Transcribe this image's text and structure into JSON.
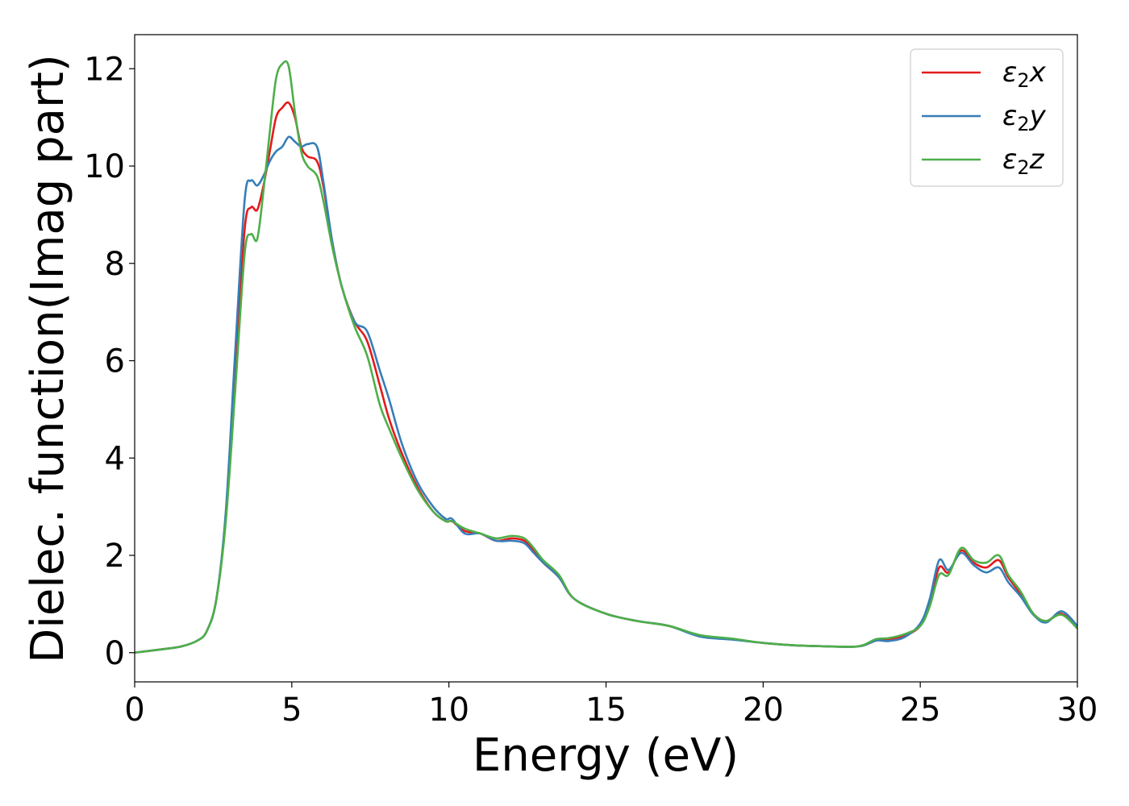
{
  "chart_data": {
    "type": "line",
    "xlabel": "Energy (eV)",
    "ylabel": "Dielec. function(Imag part)",
    "xlim": [
      0,
      30
    ],
    "ylim": [
      -0.6,
      12.7
    ],
    "xticks": [
      0,
      5,
      10,
      15,
      20,
      25,
      30
    ],
    "yticks": [
      0,
      2,
      4,
      6,
      8,
      10,
      12
    ],
    "grid": false,
    "legend_position": "top-right",
    "series": [
      {
        "name": "ε2x",
        "legend": {
          "base": "ε",
          "sub": "2",
          "axis": "x"
        },
        "color": "#e41a1c",
        "x": [
          0,
          1,
          1.5,
          2,
          2.3,
          2.6,
          2.9,
          3.2,
          3.5,
          3.7,
          3.9,
          4.1,
          4.3,
          4.5,
          4.7,
          4.9,
          5.1,
          5.3,
          5.5,
          5.8,
          6.0,
          6.3,
          6.6,
          7.0,
          7.4,
          7.8,
          8.1,
          8.5,
          9.0,
          9.5,
          9.9,
          10.1,
          10.5,
          11,
          11.5,
          12,
          12.4,
          12.7,
          13,
          13.5,
          14,
          15,
          16,
          17,
          18,
          19,
          20,
          21,
          22,
          22.8,
          23.2,
          23.6,
          24,
          24.5,
          25,
          25.3,
          25.6,
          25.9,
          26.3,
          26.7,
          27.1,
          27.5,
          27.8,
          28.2,
          28.6,
          29,
          29.5,
          30
        ],
        "values": [
          0,
          0.08,
          0.13,
          0.25,
          0.45,
          1.1,
          2.8,
          5.8,
          8.7,
          9.15,
          9.1,
          9.6,
          10.3,
          11.0,
          11.2,
          11.3,
          11.0,
          10.4,
          10.2,
          10.1,
          9.6,
          8.4,
          7.5,
          6.8,
          6.4,
          5.5,
          4.8,
          4.1,
          3.4,
          2.9,
          2.7,
          2.7,
          2.5,
          2.45,
          2.3,
          2.35,
          2.3,
          2.1,
          1.85,
          1.55,
          1.1,
          0.8,
          0.65,
          0.55,
          0.35,
          0.28,
          0.2,
          0.15,
          0.13,
          0.12,
          0.15,
          0.25,
          0.28,
          0.35,
          0.55,
          1.0,
          1.75,
          1.65,
          2.1,
          1.85,
          1.75,
          1.9,
          1.55,
          1.2,
          0.8,
          0.65,
          0.8,
          0.5
        ]
      },
      {
        "name": "ε2y",
        "legend": {
          "base": "ε",
          "sub": "2",
          "axis": "y"
        },
        "color": "#377eb8",
        "x": [
          0,
          1,
          1.5,
          2,
          2.3,
          2.6,
          2.9,
          3.2,
          3.5,
          3.7,
          3.9,
          4.1,
          4.3,
          4.5,
          4.7,
          4.9,
          5.1,
          5.3,
          5.5,
          5.8,
          6.0,
          6.3,
          6.6,
          7.0,
          7.4,
          7.8,
          8.1,
          8.5,
          9.0,
          9.5,
          9.9,
          10.1,
          10.5,
          11,
          11.5,
          12,
          12.4,
          12.7,
          13,
          13.5,
          14,
          15,
          16,
          17,
          18,
          19,
          20,
          21,
          22,
          22.8,
          23.2,
          23.6,
          24,
          24.5,
          25,
          25.3,
          25.6,
          25.9,
          26.3,
          26.7,
          27.1,
          27.5,
          27.8,
          28.2,
          28.6,
          29,
          29.5,
          30
        ],
        "values": [
          0,
          0.08,
          0.13,
          0.25,
          0.45,
          1.1,
          2.9,
          6.2,
          9.3,
          9.7,
          9.6,
          9.8,
          10.1,
          10.3,
          10.4,
          10.6,
          10.5,
          10.4,
          10.45,
          10.4,
          9.7,
          8.4,
          7.5,
          6.8,
          6.6,
          5.8,
          5.2,
          4.3,
          3.5,
          3.0,
          2.75,
          2.75,
          2.45,
          2.45,
          2.3,
          2.3,
          2.25,
          2.05,
          1.85,
          1.55,
          1.1,
          0.8,
          0.65,
          0.55,
          0.33,
          0.27,
          0.2,
          0.15,
          0.13,
          0.12,
          0.15,
          0.25,
          0.24,
          0.32,
          0.6,
          1.1,
          1.9,
          1.7,
          2.05,
          1.8,
          1.65,
          1.75,
          1.45,
          1.15,
          0.78,
          0.62,
          0.85,
          0.55
        ]
      },
      {
        "name": "ε2z",
        "legend": {
          "base": "ε",
          "sub": "2",
          "axis": "z"
        },
        "color": "#4daf4a",
        "x": [
          0,
          1,
          1.5,
          2,
          2.3,
          2.6,
          2.9,
          3.2,
          3.5,
          3.7,
          3.9,
          4.1,
          4.3,
          4.5,
          4.7,
          4.9,
          5.1,
          5.3,
          5.5,
          5.8,
          6.0,
          6.3,
          6.6,
          7.0,
          7.4,
          7.8,
          8.1,
          8.5,
          9.0,
          9.5,
          9.9,
          10.1,
          10.5,
          11,
          11.5,
          12,
          12.4,
          12.7,
          13,
          13.5,
          14,
          15,
          16,
          17,
          18,
          19,
          20,
          21,
          22,
          22.8,
          23.2,
          23.6,
          24,
          24.5,
          25,
          25.3,
          25.6,
          25.9,
          26.3,
          26.7,
          27.1,
          27.5,
          27.8,
          28.2,
          28.6,
          29,
          29.5,
          30
        ],
        "values": [
          0,
          0.08,
          0.13,
          0.25,
          0.45,
          1.1,
          2.7,
          5.4,
          8.2,
          8.6,
          8.5,
          9.5,
          10.7,
          11.8,
          12.1,
          12.05,
          11.1,
          10.3,
          10.0,
          9.8,
          9.3,
          8.3,
          7.5,
          6.7,
          6.1,
          5.1,
          4.6,
          4.0,
          3.35,
          2.9,
          2.7,
          2.7,
          2.55,
          2.45,
          2.35,
          2.4,
          2.35,
          2.15,
          1.9,
          1.6,
          1.1,
          0.8,
          0.65,
          0.55,
          0.36,
          0.29,
          0.2,
          0.15,
          0.13,
          0.12,
          0.16,
          0.28,
          0.3,
          0.38,
          0.55,
          0.95,
          1.6,
          1.6,
          2.15,
          1.9,
          1.85,
          2.0,
          1.6,
          1.25,
          0.8,
          0.65,
          0.78,
          0.5
        ]
      }
    ]
  }
}
